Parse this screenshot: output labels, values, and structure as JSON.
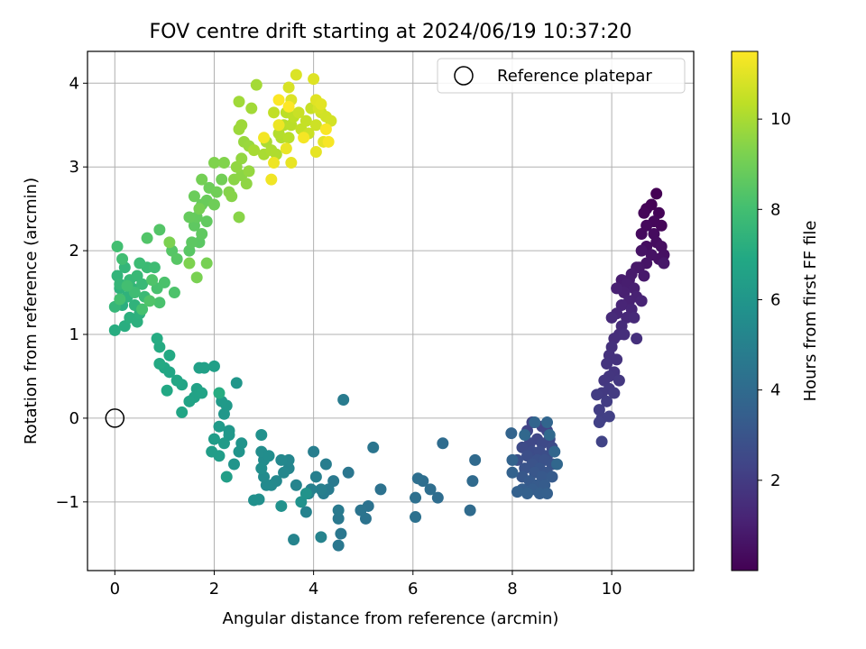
{
  "chart_data": {
    "type": "scatter",
    "title": "FOV centre drift starting at 2024/06/19 10:37:20",
    "xlabel": "Angular distance from reference (arcmin)",
    "ylabel": "Rotation from reference (arcmin)",
    "xlim": [
      -0.55,
      11.65
    ],
    "ylim": [
      -1.82,
      4.38
    ],
    "xticks": [
      0,
      2,
      4,
      6,
      8,
      10
    ],
    "yticks": [
      -1,
      0,
      1,
      2,
      3,
      4
    ],
    "grid": true,
    "legend": {
      "placement": "top-right",
      "entries": [
        "Reference platepar"
      ]
    },
    "reference_point": {
      "x": 0,
      "y": 0
    },
    "colorbar": {
      "label": "Hours from first FF file",
      "colormap": "viridis",
      "range": [
        0.0,
        11.5
      ],
      "ticks": [
        2,
        4,
        6,
        8,
        10
      ]
    },
    "series": [
      {
        "points": [
          [
            10.9,
            2.68
          ],
          [
            10.8,
            2.55
          ],
          [
            10.7,
            2.5
          ],
          [
            10.95,
            2.45
          ],
          [
            10.65,
            2.45
          ],
          [
            11.0,
            2.3
          ],
          [
            10.85,
            2.35
          ],
          [
            10.7,
            2.3
          ],
          [
            10.6,
            2.2
          ],
          [
            10.85,
            2.2
          ],
          [
            10.9,
            2.1
          ],
          [
            10.7,
            2.05
          ],
          [
            11.0,
            2.05
          ],
          [
            11.05,
            1.95
          ],
          [
            10.95,
            1.9
          ],
          [
            10.8,
            1.95
          ],
          [
            10.6,
            2.0
          ],
          [
            10.7,
            1.85
          ],
          [
            10.55,
            1.8
          ],
          [
            11.05,
            1.85
          ],
          [
            10.5,
            1.8
          ],
          [
            10.65,
            1.7
          ],
          [
            10.4,
            1.72
          ],
          [
            10.35,
            1.65
          ],
          [
            10.2,
            1.65
          ],
          [
            10.3,
            1.6
          ],
          [
            10.45,
            1.55
          ],
          [
            10.25,
            1.5
          ],
          [
            10.1,
            1.55
          ],
          [
            10.5,
            1.45
          ],
          [
            10.35,
            1.4
          ],
          [
            10.6,
            1.4
          ],
          [
            10.2,
            1.35
          ],
          [
            10.4,
            1.3
          ],
          [
            10.1,
            1.25
          ],
          [
            10.3,
            1.2
          ],
          [
            10.45,
            1.2
          ],
          [
            10.0,
            1.2
          ],
          [
            10.2,
            1.1
          ],
          [
            10.15,
            1.0
          ],
          [
            10.05,
            0.95
          ],
          [
            10.25,
            1.0
          ],
          [
            10.5,
            0.95
          ],
          [
            10.0,
            0.85
          ],
          [
            9.95,
            0.75
          ],
          [
            10.1,
            0.7
          ],
          [
            9.9,
            0.65
          ],
          [
            10.05,
            0.55
          ],
          [
            9.95,
            0.5
          ],
          [
            9.85,
            0.45
          ],
          [
            10.15,
            0.45
          ],
          [
            9.95,
            0.35
          ],
          [
            9.8,
            0.3
          ],
          [
            10.05,
            0.3
          ],
          [
            9.7,
            0.28
          ],
          [
            9.9,
            0.2
          ],
          [
            9.75,
            0.1
          ],
          [
            9.8,
            0.0
          ],
          [
            9.95,
            0.02
          ],
          [
            9.75,
            -0.05
          ],
          [
            9.8,
            -0.28
          ],
          [
            8.4,
            -0.05
          ],
          [
            8.6,
            -0.1
          ],
          [
            8.3,
            -0.15
          ],
          [
            8.7,
            -0.15
          ],
          [
            8.5,
            -0.25
          ],
          [
            8.75,
            -0.25
          ],
          [
            8.35,
            -0.3
          ],
          [
            8.6,
            -0.3
          ],
          [
            8.2,
            -0.35
          ],
          [
            8.8,
            -0.35
          ],
          [
            8.4,
            -0.4
          ],
          [
            8.55,
            -0.4
          ],
          [
            8.7,
            -0.45
          ],
          [
            8.3,
            -0.45
          ],
          [
            8.1,
            -0.5
          ],
          [
            8.5,
            -0.5
          ],
          [
            8.65,
            -0.5
          ],
          [
            8.4,
            -0.55
          ],
          [
            8.8,
            -0.55
          ],
          [
            8.25,
            -0.6
          ],
          [
            8.55,
            -0.6
          ],
          [
            8.7,
            -0.65
          ],
          [
            8.45,
            -0.65
          ],
          [
            8.2,
            -0.7
          ],
          [
            8.6,
            -0.7
          ],
          [
            8.35,
            -0.75
          ],
          [
            8.8,
            -0.7
          ],
          [
            8.5,
            -0.8
          ],
          [
            8.65,
            -0.8
          ],
          [
            8.4,
            -0.85
          ],
          [
            8.2,
            -0.85
          ],
          [
            8.55,
            -0.9
          ],
          [
            8.7,
            -0.9
          ],
          [
            8.3,
            -0.9
          ],
          [
            8.1,
            -0.88
          ],
          [
            8.0,
            -0.65
          ],
          [
            8.0,
            -0.5
          ],
          [
            7.98,
            -0.18
          ],
          [
            8.45,
            -0.05
          ],
          [
            8.7,
            -0.05
          ],
          [
            8.85,
            -0.4
          ],
          [
            8.9,
            -0.55
          ],
          [
            8.25,
            -0.2
          ],
          [
            8.75,
            -0.2
          ],
          [
            7.25,
            -0.5
          ],
          [
            7.2,
            -0.75
          ],
          [
            7.15,
            -1.1
          ],
          [
            6.6,
            -0.3
          ],
          [
            6.5,
            -0.95
          ],
          [
            6.35,
            -0.85
          ],
          [
            6.2,
            -0.75
          ],
          [
            6.1,
            -0.72
          ],
          [
            6.05,
            -0.95
          ],
          [
            6.05,
            -1.18
          ],
          [
            5.35,
            -0.85
          ],
          [
            5.1,
            -1.05
          ],
          [
            5.05,
            -1.2
          ],
          [
            4.95,
            -1.1
          ],
          [
            5.2,
            -0.35
          ],
          [
            4.7,
            -0.65
          ],
          [
            4.55,
            -1.38
          ],
          [
            4.5,
            -1.52
          ],
          [
            4.5,
            -1.2
          ],
          [
            4.4,
            -0.75
          ],
          [
            4.5,
            -1.1
          ],
          [
            4.6,
            0.22
          ],
          [
            4.3,
            -0.85
          ],
          [
            4.2,
            -0.9
          ],
          [
            4.25,
            -0.55
          ],
          [
            4.0,
            -0.4
          ],
          [
            4.15,
            -0.85
          ],
          [
            4.05,
            -0.7
          ],
          [
            3.95,
            -0.85
          ],
          [
            3.9,
            -0.9
          ],
          [
            3.85,
            -1.12
          ],
          [
            4.15,
            -1.42
          ],
          [
            3.65,
            -0.8
          ],
          [
            3.6,
            -1.45
          ],
          [
            3.5,
            -0.6
          ],
          [
            3.5,
            -0.5
          ],
          [
            3.4,
            -0.65
          ],
          [
            3.35,
            -0.5
          ],
          [
            3.25,
            -0.75
          ],
          [
            3.15,
            -0.8
          ],
          [
            3.05,
            -0.8
          ],
          [
            3.0,
            -0.7
          ],
          [
            3.0,
            -0.5
          ],
          [
            2.95,
            -0.4
          ],
          [
            3.1,
            -0.45
          ],
          [
            2.95,
            -0.6
          ],
          [
            2.9,
            -0.97
          ],
          [
            2.8,
            -0.98
          ],
          [
            2.95,
            -0.2
          ],
          [
            3.35,
            -1.05
          ],
          [
            3.75,
            -1.0
          ],
          [
            3.85,
            -0.9
          ],
          [
            2.55,
            -0.3
          ],
          [
            2.5,
            -0.4
          ],
          [
            2.4,
            -0.55
          ],
          [
            2.45,
            0.42
          ],
          [
            2.3,
            -0.15
          ],
          [
            2.2,
            0.05
          ],
          [
            2.3,
            -0.2
          ],
          [
            2.25,
            0.15
          ],
          [
            2.15,
            0.2
          ],
          [
            2.1,
            -0.1
          ],
          [
            2.2,
            -0.3
          ],
          [
            2.0,
            -0.25
          ],
          [
            1.95,
            -0.4
          ],
          [
            2.1,
            -0.45
          ],
          [
            2.25,
            -0.7
          ],
          [
            2.0,
            0.62
          ],
          [
            1.8,
            0.6
          ],
          [
            1.7,
            0.6
          ],
          [
            1.65,
            0.35
          ],
          [
            1.6,
            0.25
          ],
          [
            1.75,
            0.3
          ],
          [
            1.5,
            0.2
          ],
          [
            1.35,
            0.4
          ],
          [
            1.35,
            0.07
          ],
          [
            1.25,
            0.45
          ],
          [
            1.1,
            0.55
          ],
          [
            1.0,
            0.6
          ],
          [
            1.05,
            0.33
          ],
          [
            1.1,
            0.75
          ],
          [
            0.9,
            0.65
          ],
          [
            0.9,
            0.85
          ],
          [
            0.85,
            0.95
          ],
          [
            2.1,
            0.3
          ],
          [
            0.0,
            1.05
          ],
          [
            0.2,
            1.1
          ],
          [
            0.15,
            1.35
          ],
          [
            0.3,
            1.2
          ],
          [
            0.45,
            1.15
          ],
          [
            0.5,
            1.25
          ],
          [
            0.1,
            1.55
          ],
          [
            0.25,
            1.45
          ],
          [
            0.4,
            1.35
          ],
          [
            0.35,
            1.55
          ],
          [
            0.05,
            1.7
          ],
          [
            0.2,
            1.8
          ],
          [
            0.1,
            1.6
          ],
          [
            0.0,
            1.33
          ],
          [
            0.3,
            1.65
          ],
          [
            0.45,
            1.7
          ],
          [
            0.55,
            1.6
          ],
          [
            0.6,
            1.45
          ],
          [
            0.65,
            1.8
          ],
          [
            0.5,
            1.85
          ],
          [
            0.8,
            1.8
          ],
          [
            0.4,
            1.5
          ],
          [
            0.15,
            1.9
          ],
          [
            0.05,
            2.05
          ],
          [
            0.25,
            1.58
          ],
          [
            0.1,
            1.42
          ],
          [
            0.55,
            1.3
          ],
          [
            0.85,
            1.55
          ],
          [
            0.9,
            1.38
          ],
          [
            1.0,
            1.62
          ],
          [
            1.2,
            1.5
          ],
          [
            0.75,
            1.65
          ],
          [
            0.7,
            1.4
          ],
          [
            0.65,
            2.15
          ],
          [
            0.9,
            2.25
          ],
          [
            1.15,
            2.0
          ],
          [
            1.25,
            1.9
          ],
          [
            1.5,
            2.0
          ],
          [
            1.7,
            2.1
          ],
          [
            1.55,
            2.1
          ],
          [
            1.6,
            2.3
          ],
          [
            1.75,
            2.2
          ],
          [
            1.85,
            2.35
          ],
          [
            1.65,
            2.4
          ],
          [
            1.5,
            2.4
          ],
          [
            1.75,
            2.55
          ],
          [
            1.85,
            2.6
          ],
          [
            1.6,
            2.65
          ],
          [
            1.9,
            2.75
          ],
          [
            2.0,
            2.55
          ],
          [
            2.05,
            2.7
          ],
          [
            2.15,
            2.85
          ],
          [
            1.75,
            2.85
          ],
          [
            1.7,
            2.5
          ],
          [
            1.85,
            1.85
          ],
          [
            1.65,
            1.68
          ],
          [
            1.1,
            2.1
          ],
          [
            1.5,
            1.85
          ],
          [
            2.0,
            3.05
          ],
          [
            2.2,
            3.05
          ],
          [
            2.3,
            2.7
          ],
          [
            2.35,
            2.65
          ],
          [
            2.5,
            2.4
          ],
          [
            2.4,
            2.85
          ],
          [
            2.55,
            2.9
          ],
          [
            2.65,
            2.8
          ],
          [
            2.45,
            3.0
          ],
          [
            2.55,
            3.1
          ],
          [
            2.7,
            2.95
          ],
          [
            2.6,
            3.3
          ],
          [
            2.7,
            3.25
          ],
          [
            2.5,
            3.45
          ],
          [
            2.55,
            3.5
          ],
          [
            2.5,
            3.78
          ],
          [
            2.75,
            3.7
          ],
          [
            2.85,
            3.98
          ],
          [
            2.8,
            3.2
          ],
          [
            3.0,
            3.15
          ],
          [
            3.05,
            3.3
          ],
          [
            3.15,
            3.2
          ],
          [
            3.25,
            3.15
          ],
          [
            3.35,
            3.35
          ],
          [
            3.3,
            3.4
          ],
          [
            3.4,
            3.5
          ],
          [
            3.5,
            3.35
          ],
          [
            3.55,
            3.5
          ],
          [
            3.45,
            3.65
          ],
          [
            3.6,
            3.6
          ],
          [
            3.2,
            3.65
          ],
          [
            3.75,
            3.45
          ],
          [
            3.85,
            3.55
          ],
          [
            3.95,
            3.7
          ],
          [
            3.7,
            3.65
          ],
          [
            3.9,
            3.4
          ],
          [
            4.05,
            3.5
          ],
          [
            4.15,
            3.65
          ],
          [
            4.25,
            3.6
          ],
          [
            4.35,
            3.55
          ],
          [
            4.1,
            3.7
          ],
          [
            3.5,
            3.95
          ],
          [
            3.65,
            4.1
          ],
          [
            3.55,
            3.8
          ],
          [
            4.0,
            4.05
          ],
          [
            4.05,
            3.8
          ],
          [
            4.15,
            3.75
          ],
          [
            4.2,
            3.3
          ],
          [
            4.05,
            3.18
          ],
          [
            3.55,
            3.05
          ],
          [
            3.45,
            3.22
          ],
          [
            3.3,
            3.5
          ],
          [
            3.2,
            3.05
          ],
          [
            3.15,
            2.85
          ],
          [
            3.0,
            3.35
          ],
          [
            3.8,
            3.35
          ],
          [
            4.3,
            3.3
          ],
          [
            4.25,
            3.45
          ],
          [
            3.3,
            3.8
          ],
          [
            3.5,
            3.72
          ]
        ]
      }
    ]
  }
}
